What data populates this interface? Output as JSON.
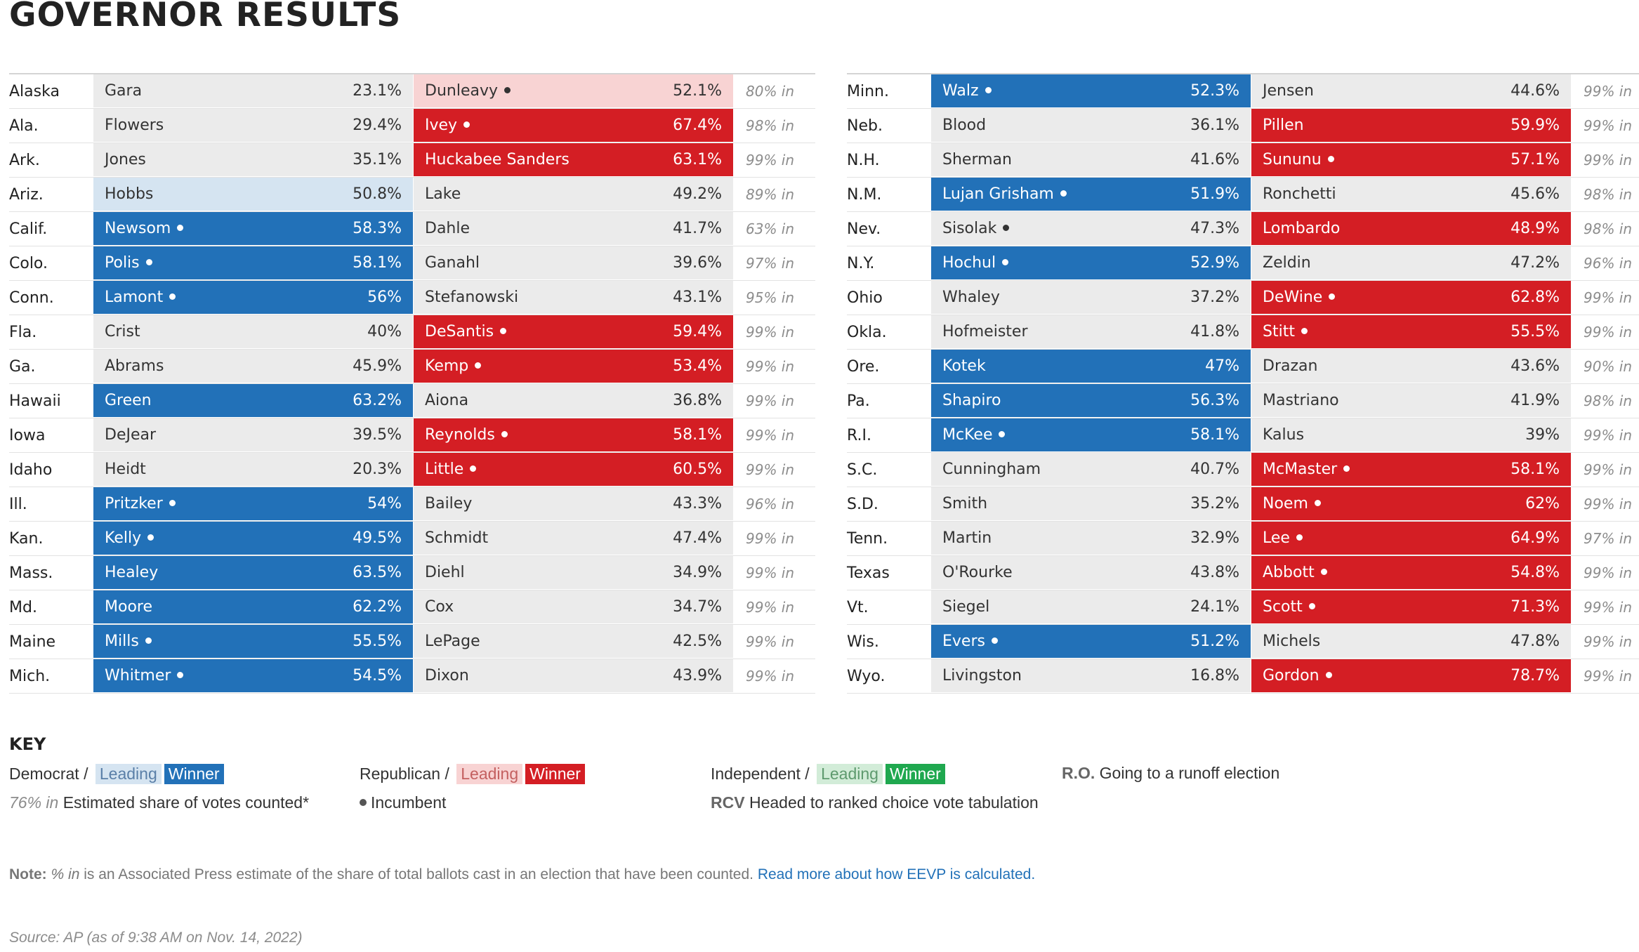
{
  "title": "GOVERNOR RESULTS",
  "colors": {
    "dem_winner": "#2271b8",
    "dem_leading": "#d5e4f1",
    "rep_winner": "#d41e24",
    "rep_leading": "#f8d3d3",
    "ind_winner": "#1fa84f",
    "ind_leading": "#d2ecd8",
    "neutral": "#ebebeb"
  },
  "left_rows": [
    {
      "state": "Alaska",
      "c1": {
        "name": "Gara",
        "pct": "23.1%",
        "status": "none",
        "incumbent": false
      },
      "c2": {
        "name": "Dunleavy",
        "pct": "52.1%",
        "status": "rep-lead",
        "incumbent": true
      },
      "pct_in": "80% in"
    },
    {
      "state": "Ala.",
      "c1": {
        "name": "Flowers",
        "pct": "29.4%",
        "status": "none",
        "incumbent": false
      },
      "c2": {
        "name": "Ivey",
        "pct": "67.4%",
        "status": "rep-win",
        "incumbent": true
      },
      "pct_in": "98% in"
    },
    {
      "state": "Ark.",
      "c1": {
        "name": "Jones",
        "pct": "35.1%",
        "status": "none",
        "incumbent": false
      },
      "c2": {
        "name": "Huckabee Sanders",
        "pct": "63.1%",
        "status": "rep-win",
        "incumbent": false
      },
      "pct_in": "99% in"
    },
    {
      "state": "Ariz.",
      "c1": {
        "name": "Hobbs",
        "pct": "50.8%",
        "status": "dem-lead",
        "incumbent": false
      },
      "c2": {
        "name": "Lake",
        "pct": "49.2%",
        "status": "none",
        "incumbent": false
      },
      "pct_in": "89% in"
    },
    {
      "state": "Calif.",
      "c1": {
        "name": "Newsom",
        "pct": "58.3%",
        "status": "dem-win",
        "incumbent": true
      },
      "c2": {
        "name": "Dahle",
        "pct": "41.7%",
        "status": "none",
        "incumbent": false
      },
      "pct_in": "63% in"
    },
    {
      "state": "Colo.",
      "c1": {
        "name": "Polis",
        "pct": "58.1%",
        "status": "dem-win",
        "incumbent": true
      },
      "c2": {
        "name": "Ganahl",
        "pct": "39.6%",
        "status": "none",
        "incumbent": false
      },
      "pct_in": "97% in"
    },
    {
      "state": "Conn.",
      "c1": {
        "name": "Lamont",
        "pct": "56%",
        "status": "dem-win",
        "incumbent": true
      },
      "c2": {
        "name": "Stefanowski",
        "pct": "43.1%",
        "status": "none",
        "incumbent": false
      },
      "pct_in": "95% in"
    },
    {
      "state": "Fla.",
      "c1": {
        "name": "Crist",
        "pct": "40%",
        "status": "none",
        "incumbent": false
      },
      "c2": {
        "name": "DeSantis",
        "pct": "59.4%",
        "status": "rep-win",
        "incumbent": true
      },
      "pct_in": "99% in"
    },
    {
      "state": "Ga.",
      "c1": {
        "name": "Abrams",
        "pct": "45.9%",
        "status": "none",
        "incumbent": false
      },
      "c2": {
        "name": "Kemp",
        "pct": "53.4%",
        "status": "rep-win",
        "incumbent": true
      },
      "pct_in": "99% in"
    },
    {
      "state": "Hawaii",
      "c1": {
        "name": "Green",
        "pct": "63.2%",
        "status": "dem-win",
        "incumbent": false
      },
      "c2": {
        "name": "Aiona",
        "pct": "36.8%",
        "status": "none",
        "incumbent": false
      },
      "pct_in": "99% in"
    },
    {
      "state": "Iowa",
      "c1": {
        "name": "DeJear",
        "pct": "39.5%",
        "status": "none",
        "incumbent": false
      },
      "c2": {
        "name": "Reynolds",
        "pct": "58.1%",
        "status": "rep-win",
        "incumbent": true
      },
      "pct_in": "99% in"
    },
    {
      "state": "Idaho",
      "c1": {
        "name": "Heidt",
        "pct": "20.3%",
        "status": "none",
        "incumbent": false
      },
      "c2": {
        "name": "Little",
        "pct": "60.5%",
        "status": "rep-win",
        "incumbent": true
      },
      "pct_in": "99% in"
    },
    {
      "state": "Ill.",
      "c1": {
        "name": "Pritzker",
        "pct": "54%",
        "status": "dem-win",
        "incumbent": true
      },
      "c2": {
        "name": "Bailey",
        "pct": "43.3%",
        "status": "none",
        "incumbent": false
      },
      "pct_in": "96% in"
    },
    {
      "state": "Kan.",
      "c1": {
        "name": "Kelly",
        "pct": "49.5%",
        "status": "dem-win",
        "incumbent": true
      },
      "c2": {
        "name": "Schmidt",
        "pct": "47.4%",
        "status": "none",
        "incumbent": false
      },
      "pct_in": "99% in"
    },
    {
      "state": "Mass.",
      "c1": {
        "name": "Healey",
        "pct": "63.5%",
        "status": "dem-win",
        "incumbent": false
      },
      "c2": {
        "name": "Diehl",
        "pct": "34.9%",
        "status": "none",
        "incumbent": false
      },
      "pct_in": "99% in"
    },
    {
      "state": "Md.",
      "c1": {
        "name": "Moore",
        "pct": "62.2%",
        "status": "dem-win",
        "incumbent": false
      },
      "c2": {
        "name": "Cox",
        "pct": "34.7%",
        "status": "none",
        "incumbent": false
      },
      "pct_in": "99% in"
    },
    {
      "state": "Maine",
      "c1": {
        "name": "Mills",
        "pct": "55.5%",
        "status": "dem-win",
        "incumbent": true
      },
      "c2": {
        "name": "LePage",
        "pct": "42.5%",
        "status": "none",
        "incumbent": false
      },
      "pct_in": "99% in"
    },
    {
      "state": "Mich.",
      "c1": {
        "name": "Whitmer",
        "pct": "54.5%",
        "status": "dem-win",
        "incumbent": true
      },
      "c2": {
        "name": "Dixon",
        "pct": "43.9%",
        "status": "none",
        "incumbent": false
      },
      "pct_in": "99% in"
    }
  ],
  "right_rows": [
    {
      "state": "Minn.",
      "c1": {
        "name": "Walz",
        "pct": "52.3%",
        "status": "dem-win",
        "incumbent": true
      },
      "c2": {
        "name": "Jensen",
        "pct": "44.6%",
        "status": "none",
        "incumbent": false
      },
      "pct_in": "99% in"
    },
    {
      "state": "Neb.",
      "c1": {
        "name": "Blood",
        "pct": "36.1%",
        "status": "none",
        "incumbent": false
      },
      "c2": {
        "name": "Pillen",
        "pct": "59.9%",
        "status": "rep-win",
        "incumbent": false
      },
      "pct_in": "99% in"
    },
    {
      "state": "N.H.",
      "c1": {
        "name": "Sherman",
        "pct": "41.6%",
        "status": "none",
        "incumbent": false
      },
      "c2": {
        "name": "Sununu",
        "pct": "57.1%",
        "status": "rep-win",
        "incumbent": true
      },
      "pct_in": "99% in"
    },
    {
      "state": "N.M.",
      "c1": {
        "name": "Lujan Grisham",
        "pct": "51.9%",
        "status": "dem-win",
        "incumbent": true
      },
      "c2": {
        "name": "Ronchetti",
        "pct": "45.6%",
        "status": "none",
        "incumbent": false
      },
      "pct_in": "98% in"
    },
    {
      "state": "Nev.",
      "c1": {
        "name": "Sisolak",
        "pct": "47.3%",
        "status": "none",
        "incumbent": true
      },
      "c2": {
        "name": "Lombardo",
        "pct": "48.9%",
        "status": "rep-win",
        "incumbent": false
      },
      "pct_in": "98% in"
    },
    {
      "state": "N.Y.",
      "c1": {
        "name": "Hochul",
        "pct": "52.9%",
        "status": "dem-win",
        "incumbent": true
      },
      "c2": {
        "name": "Zeldin",
        "pct": "47.2%",
        "status": "none",
        "incumbent": false
      },
      "pct_in": "96% in"
    },
    {
      "state": "Ohio",
      "c1": {
        "name": "Whaley",
        "pct": "37.2%",
        "status": "none",
        "incumbent": false
      },
      "c2": {
        "name": "DeWine",
        "pct": "62.8%",
        "status": "rep-win",
        "incumbent": true
      },
      "pct_in": "99% in"
    },
    {
      "state": "Okla.",
      "c1": {
        "name": "Hofmeister",
        "pct": "41.8%",
        "status": "none",
        "incumbent": false
      },
      "c2": {
        "name": "Stitt",
        "pct": "55.5%",
        "status": "rep-win",
        "incumbent": true
      },
      "pct_in": "99% in"
    },
    {
      "state": "Ore.",
      "c1": {
        "name": "Kotek",
        "pct": "47%",
        "status": "dem-win",
        "incumbent": false
      },
      "c2": {
        "name": "Drazan",
        "pct": "43.6%",
        "status": "none",
        "incumbent": false
      },
      "pct_in": "90% in"
    },
    {
      "state": "Pa.",
      "c1": {
        "name": "Shapiro",
        "pct": "56.3%",
        "status": "dem-win",
        "incumbent": false
      },
      "c2": {
        "name": "Mastriano",
        "pct": "41.9%",
        "status": "none",
        "incumbent": false
      },
      "pct_in": "98% in"
    },
    {
      "state": "R.I.",
      "c1": {
        "name": "McKee",
        "pct": "58.1%",
        "status": "dem-win",
        "incumbent": true
      },
      "c2": {
        "name": "Kalus",
        "pct": "39%",
        "status": "none",
        "incumbent": false
      },
      "pct_in": "99% in"
    },
    {
      "state": "S.C.",
      "c1": {
        "name": "Cunningham",
        "pct": "40.7%",
        "status": "none",
        "incumbent": false
      },
      "c2": {
        "name": "McMaster",
        "pct": "58.1%",
        "status": "rep-win",
        "incumbent": true
      },
      "pct_in": "99% in"
    },
    {
      "state": "S.D.",
      "c1": {
        "name": "Smith",
        "pct": "35.2%",
        "status": "none",
        "incumbent": false
      },
      "c2": {
        "name": "Noem",
        "pct": "62%",
        "status": "rep-win",
        "incumbent": true
      },
      "pct_in": "99% in"
    },
    {
      "state": "Tenn.",
      "c1": {
        "name": "Martin",
        "pct": "32.9%",
        "status": "none",
        "incumbent": false
      },
      "c2": {
        "name": "Lee",
        "pct": "64.9%",
        "status": "rep-win",
        "incumbent": true
      },
      "pct_in": "97% in"
    },
    {
      "state": "Texas",
      "c1": {
        "name": "O'Rourke",
        "pct": "43.8%",
        "status": "none",
        "incumbent": false
      },
      "c2": {
        "name": "Abbott",
        "pct": "54.8%",
        "status": "rep-win",
        "incumbent": true
      },
      "pct_in": "99% in"
    },
    {
      "state": "Vt.",
      "c1": {
        "name": "Siegel",
        "pct": "24.1%",
        "status": "none",
        "incumbent": false
      },
      "c2": {
        "name": "Scott",
        "pct": "71.3%",
        "status": "rep-win",
        "incumbent": true
      },
      "pct_in": "99% in"
    },
    {
      "state": "Wis.",
      "c1": {
        "name": "Evers",
        "pct": "51.2%",
        "status": "dem-win",
        "incumbent": true
      },
      "c2": {
        "name": "Michels",
        "pct": "47.8%",
        "status": "none",
        "incumbent": false
      },
      "pct_in": "99% in"
    },
    {
      "state": "Wyo.",
      "c1": {
        "name": "Livingston",
        "pct": "16.8%",
        "status": "none",
        "incumbent": false
      },
      "c2": {
        "name": "Gordon",
        "pct": "78.7%",
        "status": "rep-win",
        "incumbent": true
      },
      "pct_in": "99% in"
    }
  ],
  "key": {
    "title": "KEY",
    "democrat_label": "Democrat /",
    "republican_label": "Republican /",
    "independent_label": "Independent /",
    "leading": "Leading",
    "winner": "Winner",
    "runoff_abbr": "R.O.",
    "runoff_text": "Going to a runoff election",
    "pct_in_example": "76% in",
    "pct_in_text": "Estimated share of votes counted*",
    "incumbent_text": "Incumbent",
    "rcv_abbr": "RCV",
    "rcv_text": "Headed to ranked choice vote tabulation"
  },
  "note": {
    "label": "Note:",
    "italic": "% in",
    "text": "is an Associated Press estimate of the share of total ballots cast in an election that have been counted.",
    "link": "Read more about how EEVP is calculated."
  },
  "source": "Source: AP (as of 9:38 AM on Nov. 14, 2022)"
}
